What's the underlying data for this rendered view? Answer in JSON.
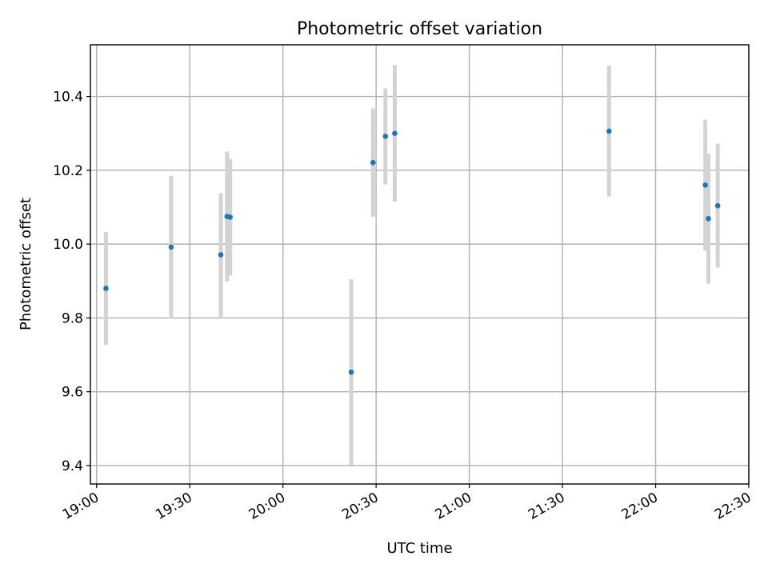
{
  "chart_data": {
    "type": "scatter",
    "title": "Photometric offset variation",
    "xlabel": "UTC time",
    "ylabel": "Photometric offset",
    "xlim": [
      "18:58",
      "22:30"
    ],
    "ylim": [
      9.35,
      10.54
    ],
    "x_ticks": [
      "19:00",
      "19:30",
      "20:00",
      "20:30",
      "21:00",
      "21:30",
      "22:00",
      "22:30"
    ],
    "y_ticks": [
      9.4,
      9.6,
      9.8,
      10.0,
      10.2,
      10.4
    ],
    "grid": true,
    "marker_color": "#1f77b4",
    "errorbar_color": "#d3d3d3",
    "points": [
      {
        "x": "19:03",
        "y": 9.88,
        "err": 0.153
      },
      {
        "x": "19:24",
        "y": 9.992,
        "err": 0.193
      },
      {
        "x": "19:40",
        "y": 9.971,
        "err": 0.168
      },
      {
        "x": "19:42",
        "y": 10.075,
        "err": 0.176
      },
      {
        "x": "19:43",
        "y": 10.073,
        "err": 0.158
      },
      {
        "x": "20:22",
        "y": 9.653,
        "err": 0.252
      },
      {
        "x": "20:29",
        "y": 10.221,
        "err": 0.147
      },
      {
        "x": "20:33",
        "y": 10.292,
        "err": 0.13
      },
      {
        "x": "20:36",
        "y": 10.3,
        "err": 0.185
      },
      {
        "x": "21:45",
        "y": 10.306,
        "err": 0.177
      },
      {
        "x": "22:16",
        "y": 10.16,
        "err": 0.177
      },
      {
        "x": "22:17",
        "y": 10.069,
        "err": 0.176
      },
      {
        "x": "22:20",
        "y": 10.104,
        "err": 0.168
      }
    ]
  }
}
